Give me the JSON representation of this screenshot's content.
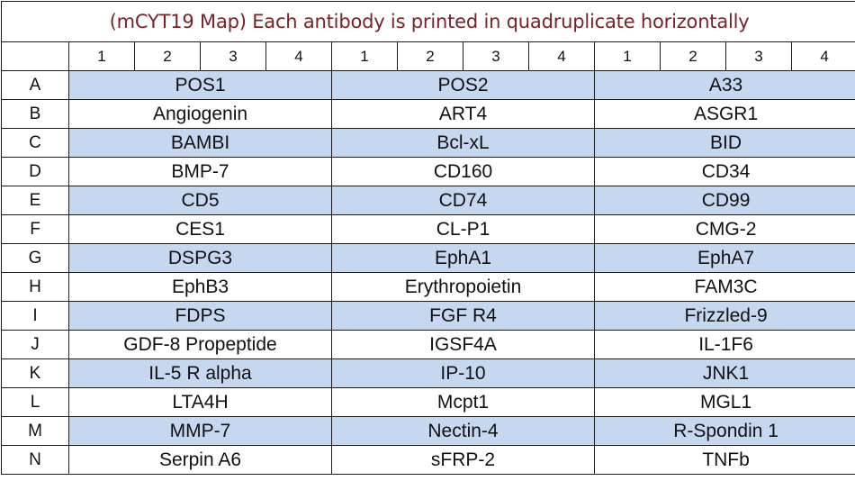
{
  "title": "(mCYT19 Map) Each antibody is printed in quadruplicate horizontally",
  "column_numbers": [
    "1",
    "2",
    "3",
    "4",
    "1",
    "2",
    "3",
    "4",
    "1",
    "2",
    "3",
    "4"
  ],
  "rows": [
    {
      "label": "A",
      "cells": [
        "POS1",
        "POS2",
        "A33"
      ]
    },
    {
      "label": "B",
      "cells": [
        "Angiogenin",
        "ART4",
        "ASGR1"
      ]
    },
    {
      "label": "C",
      "cells": [
        "BAMBI",
        "Bcl-xL",
        "BID"
      ]
    },
    {
      "label": "D",
      "cells": [
        "BMP-7",
        "CD160",
        "CD34"
      ]
    },
    {
      "label": "E",
      "cells": [
        "CD5",
        "CD74",
        "CD99"
      ]
    },
    {
      "label": "F",
      "cells": [
        "CES1",
        "CL-P1",
        "CMG-2"
      ]
    },
    {
      "label": "G",
      "cells": [
        "DSPG3",
        "EphA1",
        "EphA7"
      ]
    },
    {
      "label": "H",
      "cells": [
        "EphB3",
        "Erythropoietin",
        "FAM3C"
      ]
    },
    {
      "label": "I",
      "cells": [
        "FDPS",
        "FGF R4",
        "Frizzled-9"
      ]
    },
    {
      "label": "J",
      "cells": [
        "GDF-8 Propeptide",
        "IGSF4A",
        "IL-1F6"
      ]
    },
    {
      "label": "K",
      "cells": [
        "IL-5 R alpha",
        "IP-10",
        "JNK1"
      ]
    },
    {
      "label": "L",
      "cells": [
        "LTA4H",
        "Mcpt1",
        "MGL1"
      ]
    },
    {
      "label": "M",
      "cells": [
        "MMP-7",
        "Nectin-4",
        "R-Spondin 1"
      ]
    },
    {
      "label": "N",
      "cells": [
        "Serpin A6",
        "sFRP-2",
        "TNFb"
      ]
    }
  ],
  "colors": {
    "shaded_row": "#c5d8ef",
    "title_text": "#7a2326",
    "border": "#1a1a1a"
  }
}
